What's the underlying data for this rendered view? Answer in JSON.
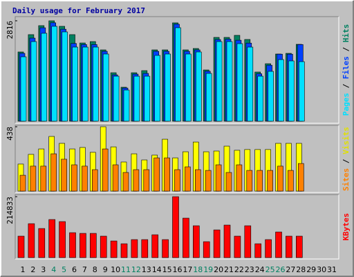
{
  "title": "Daily usage for February 2017",
  "legend_separator": " / ",
  "chart_data": [
    {
      "type": "bar",
      "ylim": [
        0,
        2816
      ],
      "yticks": [
        2816
      ],
      "series": [
        {
          "name": "Hits",
          "color": "#008060",
          "values": [
            1942,
            2428,
            2680,
            2816,
            2661,
            2428,
            2194,
            2233,
            2000,
            1359,
            952,
            1359,
            1418,
            2000,
            2000,
            2758,
            2000,
            2039,
            1437,
            2350,
            2350,
            2408,
            2292,
            1379,
            1612,
            1884,
            1903,
            2156,
            null,
            null,
            null
          ]
        },
        {
          "name": "Files",
          "color": "#0040ff",
          "values": [
            1903,
            2330,
            2620,
            2760,
            2580,
            2180,
            2150,
            2150,
            1960,
            1300,
            930,
            1320,
            1340,
            1960,
            1960,
            2720,
            1960,
            2000,
            1400,
            2290,
            2300,
            2270,
            2190,
            1330,
            1570,
            1880,
            1880,
            2150,
            null,
            null,
            null
          ]
        },
        {
          "name": "Pages",
          "color": "#00e0ff",
          "values": [
            1806,
            2233,
            2466,
            2661,
            2505,
            2078,
            2078,
            2078,
            1884,
            1262,
            874,
            1262,
            1262,
            1845,
            1884,
            2622,
            1884,
            1942,
            1340,
            2233,
            2233,
            2175,
            2078,
            1262,
            1398,
            1728,
            1690,
            1670,
            null,
            null,
            null
          ]
        }
      ]
    },
    {
      "type": "bar",
      "ylim": [
        0,
        438
      ],
      "yticks": [
        438
      ],
      "series": [
        {
          "name": "Visits",
          "color": "#ffff00",
          "values": [
            184,
            250,
            287,
            372,
            325,
            287,
            297,
            264,
            438,
            301,
            198,
            254,
            212,
            245,
            353,
            226,
            268,
            334,
            268,
            273,
            306,
            278,
            283,
            283,
            283,
            325,
            325,
            325,
            null,
            null,
            null
          ]
        },
        {
          "name": "Sites",
          "color": "#ff8000",
          "values": [
            108,
            170,
            170,
            254,
            217,
            179,
            170,
            146,
            287,
            179,
            127,
            146,
            146,
            226,
            226,
            146,
            165,
            146,
            141,
            179,
            127,
            179,
            141,
            141,
            141,
            170,
            141,
            188,
            null,
            null,
            null
          ]
        }
      ]
    },
    {
      "type": "bar",
      "ylim": [
        0,
        214833
      ],
      "yticks": [
        214833
      ],
      "categories": [
        "1",
        "2",
        "3",
        "4",
        "5",
        "6",
        "7",
        "8",
        "9",
        "10",
        "11",
        "12",
        "13",
        "14",
        "15",
        "16",
        "17",
        "18",
        "19",
        "20",
        "21",
        "22",
        "23",
        "24",
        "25",
        "26",
        "27",
        "28",
        "29",
        "30",
        "31"
      ],
      "category_colors": [
        "#000000",
        "#000000",
        "#000000",
        "#008060",
        "#008060",
        "#000000",
        "#000000",
        "#000000",
        "#000000",
        "#000000",
        "#008060",
        "#008060",
        "#000000",
        "#000000",
        "#000000",
        "#000000",
        "#000000",
        "#008060",
        "#008060",
        "#000000",
        "#000000",
        "#000000",
        "#000000",
        "#000000",
        "#008060",
        "#008060",
        "#000000",
        "#000000",
        "#000000",
        "#000000",
        "#000000"
      ],
      "series": [
        {
          "name": "KBytes",
          "color": "#ff0000",
          "values": [
            75671,
            119609,
            102522,
            134255,
            126932,
            87876,
            85435,
            85435,
            75671,
            58584,
            48820,
            63466,
            63466,
            80553,
            63466,
            214833,
            139137,
            112286,
            56143,
            97640,
            114727,
            75671,
            112286,
            48820,
            63466,
            90317,
            75671,
            75671,
            null,
            null,
            null
          ]
        }
      ]
    }
  ]
}
